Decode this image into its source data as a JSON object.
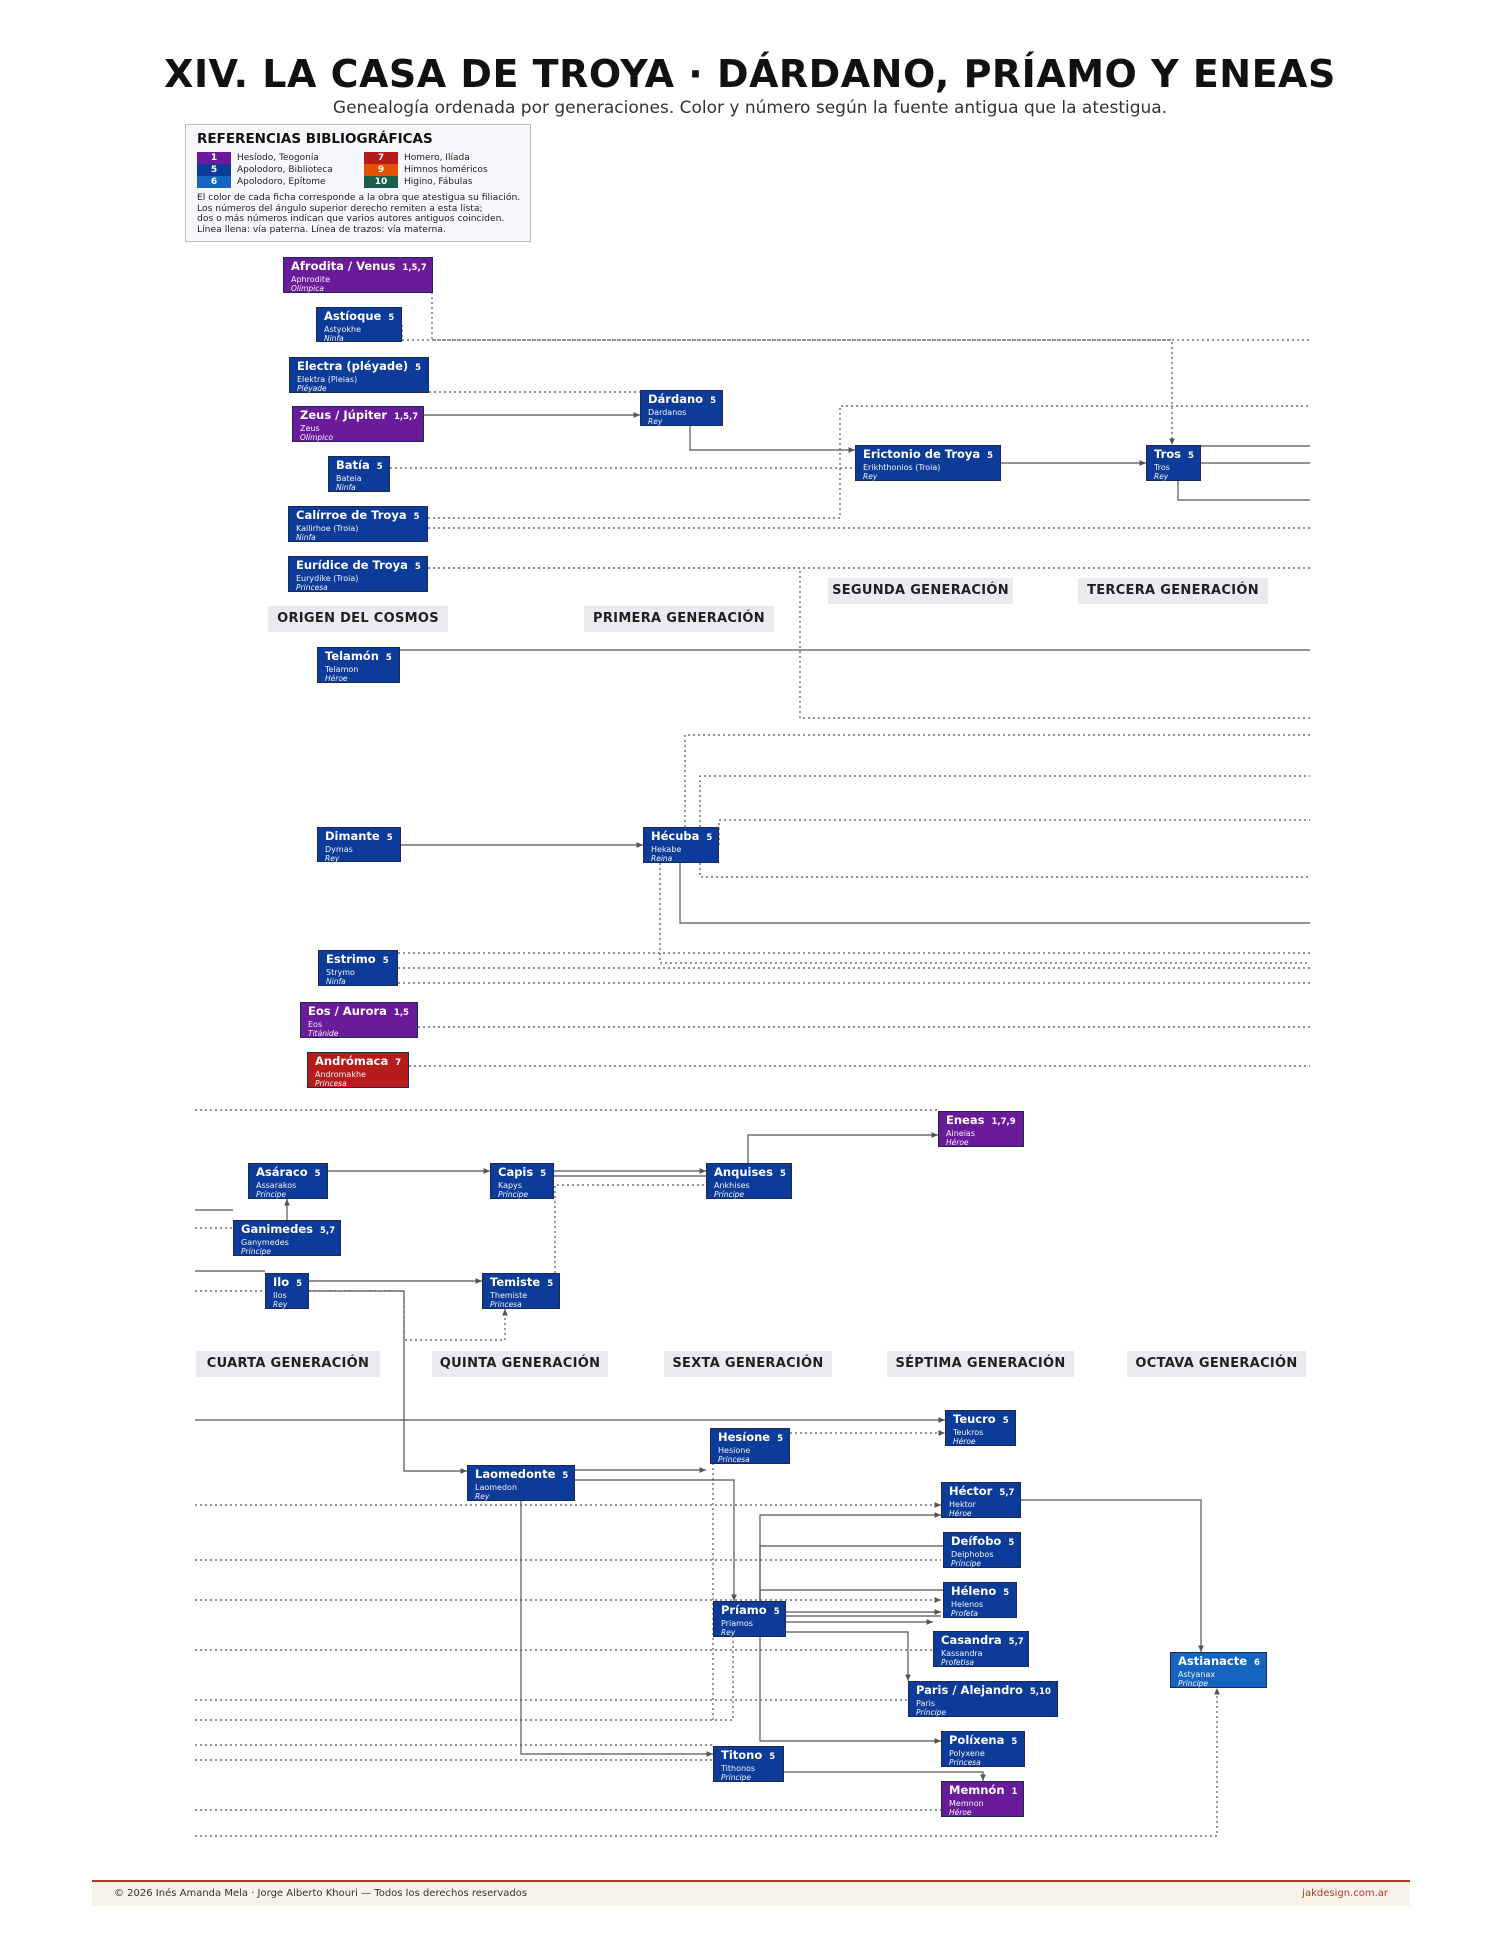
{
  "title": "XIV. LA CASA DE TROYA · DÁRDANO, PRÍAMO Y ENEAS",
  "subtitle": "Genealogía ordenada por generaciones. Color y número según la fuente antigua que la atestigua.",
  "legend": {
    "title": "REFERENCIAS BIBLIOGRÁFICAS",
    "items": [
      {
        "num": "1",
        "label": "Hesíodo, Teogonía",
        "color": "#6a1b9a"
      },
      {
        "num": "5",
        "label": "Apolodoro, Biblioteca",
        "color": "#0d3b99"
      },
      {
        "num": "6",
        "label": "Apolodoro, Epítome",
        "color": "#1565c0"
      },
      {
        "num": "7",
        "label": "Homero, Ilíada",
        "color": "#b71c1c"
      },
      {
        "num": "9",
        "label": "Himnos homéricos",
        "color": "#e65100"
      },
      {
        "num": "10",
        "label": "Higino, Fábulas",
        "color": "#1b5e4a"
      }
    ],
    "note": [
      "El color de cada ficha corresponde a la obra que atestigua su filiación.",
      "Los números del ángulo superior derecho remiten a esta lista;",
      "dos o más números indican que varios autores antiguos coinciden.",
      "Línea llena: vía paterna. Línea de trazos: vía materna."
    ]
  },
  "generations": [
    "ORIGEN DEL COSMOS",
    "PRIMERA GENERACIÓN",
    "SEGUNDA GENERACIÓN",
    "TERCERA GENERACIÓN",
    "CUARTA GENERACIÓN",
    "QUINTA GENERACIÓN",
    "SEXTA GENERACIÓN",
    "SÉPTIMA GENERACIÓN",
    "OCTAVA GENERACIÓN"
  ],
  "nodes": [
    {
      "name": "Afrodita / Venus",
      "src": "1,5,7",
      "greek": "Aphrodite",
      "role": "Olímpica",
      "color": "#6a1b9a"
    },
    {
      "name": "Astíoque",
      "src": "5",
      "greek": "Astyokhe",
      "role": "Ninfa",
      "color": "#0d3b99"
    },
    {
      "name": "Electra (pléyade)",
      "src": "5",
      "greek": "Elektra (Pleias)",
      "role": "Pléyade",
      "color": "#0d3b99"
    },
    {
      "name": "Zeus / Júpiter",
      "src": "1,5,7",
      "greek": "Zeus",
      "role": "Olímpico",
      "color": "#6a1b9a"
    },
    {
      "name": "Batía",
      "src": "5",
      "greek": "Bateia",
      "role": "Ninfa",
      "color": "#0d3b99"
    },
    {
      "name": "Calírroe de Troya",
      "src": "5",
      "greek": "Kallirhoe (Troia)",
      "role": "Ninfa",
      "color": "#0d3b99"
    },
    {
      "name": "Eurídice de Troya",
      "src": "5",
      "greek": "Eurydike (Troia)",
      "role": "Princesa",
      "color": "#0d3b99"
    },
    {
      "name": "Dárdano",
      "src": "5",
      "greek": "Dardanos",
      "role": "Rey",
      "color": "#0d3b99"
    },
    {
      "name": "Erictonio de Troya",
      "src": "5",
      "greek": "Erikhthonios (Troia)",
      "role": "Rey",
      "color": "#0d3b99"
    },
    {
      "name": "Tros",
      "src": "5",
      "greek": "Tros",
      "role": "Rey",
      "color": "#0d3b99"
    },
    {
      "name": "Telamón",
      "src": "5",
      "greek": "Telamon",
      "role": "Héroe",
      "color": "#0d3b99"
    },
    {
      "name": "Dimante",
      "src": "5",
      "greek": "Dymas",
      "role": "Rey",
      "color": "#0d3b99"
    },
    {
      "name": "Hécuba",
      "src": "5",
      "greek": "Hekabe",
      "role": "Reina",
      "color": "#0d3b99"
    },
    {
      "name": "Estrimo",
      "src": "5",
      "greek": "Strymo",
      "role": "Ninfa",
      "color": "#0d3b99"
    },
    {
      "name": "Eos / Aurora",
      "src": "1,5",
      "greek": "Eos",
      "role": "Titánide",
      "color": "#6a1b9a"
    },
    {
      "name": "Andrómaca",
      "src": "7",
      "greek": "Andromakhe",
      "role": "Princesa",
      "color": "#b71c1c"
    },
    {
      "name": "Eneas",
      "src": "1,7,9",
      "greek": "Aineias",
      "role": "Héroe",
      "color": "#6a1b9a"
    },
    {
      "name": "Asáraco",
      "src": "5",
      "greek": "Assarakos",
      "role": "Príncipe",
      "color": "#0d3b99"
    },
    {
      "name": "Capis",
      "src": "5",
      "greek": "Kapys",
      "role": "Príncipe",
      "color": "#0d3b99"
    },
    {
      "name": "Anquises",
      "src": "5",
      "greek": "Ankhises",
      "role": "Príncipe",
      "color": "#0d3b99"
    },
    {
      "name": "Ganimedes",
      "src": "5,7",
      "greek": "Ganymedes",
      "role": "Príncipe",
      "color": "#0d3b99"
    },
    {
      "name": "Ilo",
      "src": "5",
      "greek": "Ilos",
      "role": "Rey",
      "color": "#0d3b99"
    },
    {
      "name": "Temiste",
      "src": "5",
      "greek": "Themiste",
      "role": "Princesa",
      "color": "#0d3b99"
    },
    {
      "name": "Teucro",
      "src": "5",
      "greek": "Teukros",
      "role": "Héroe",
      "color": "#0d3b99"
    },
    {
      "name": "Hesíone",
      "src": "5",
      "greek": "Hesione",
      "role": "Princesa",
      "color": "#0d3b99"
    },
    {
      "name": "Laomedonte",
      "src": "5",
      "greek": "Laomedon",
      "role": "Rey",
      "color": "#0d3b99"
    },
    {
      "name": "Héctor",
      "src": "5,7",
      "greek": "Hektor",
      "role": "Héroe",
      "color": "#0d3b99"
    },
    {
      "name": "Deífobo",
      "src": "5",
      "greek": "Deiphobos",
      "role": "Príncipe",
      "color": "#0d3b99"
    },
    {
      "name": "Héleno",
      "src": "5",
      "greek": "Helenos",
      "role": "Profeta",
      "color": "#0d3b99"
    },
    {
      "name": "Príamo",
      "src": "5",
      "greek": "Priamos",
      "role": "Rey",
      "color": "#0d3b99"
    },
    {
      "name": "Casandra",
      "src": "5,7",
      "greek": "Kassandra",
      "role": "Profetisa",
      "color": "#0d3b99"
    },
    {
      "name": "Astianacte",
      "src": "6",
      "greek": "Astyanax",
      "role": "Príncipe",
      "color": "#1565c0"
    },
    {
      "name": "Paris / Alejandro",
      "src": "5,10",
      "greek": "Paris",
      "role": "Príncipe",
      "color": "#0d3b99"
    },
    {
      "name": "Políxena",
      "src": "5",
      "greek": "Polyxene",
      "role": "Princesa",
      "color": "#0d3b99"
    },
    {
      "name": "Titono",
      "src": "5",
      "greek": "Tithonos",
      "role": "Príncipe",
      "color": "#0d3b99"
    },
    {
      "name": "Memnón",
      "src": "1",
      "greek": "Memnon",
      "role": "Héroe",
      "color": "#6a1b9a"
    }
  ],
  "footer": {
    "left": "© 2026  Inés Amanda Mela  ·  Jorge Alberto Khouri  —  Todos los derechos reservados",
    "right": "jakdesign.com.ar"
  }
}
